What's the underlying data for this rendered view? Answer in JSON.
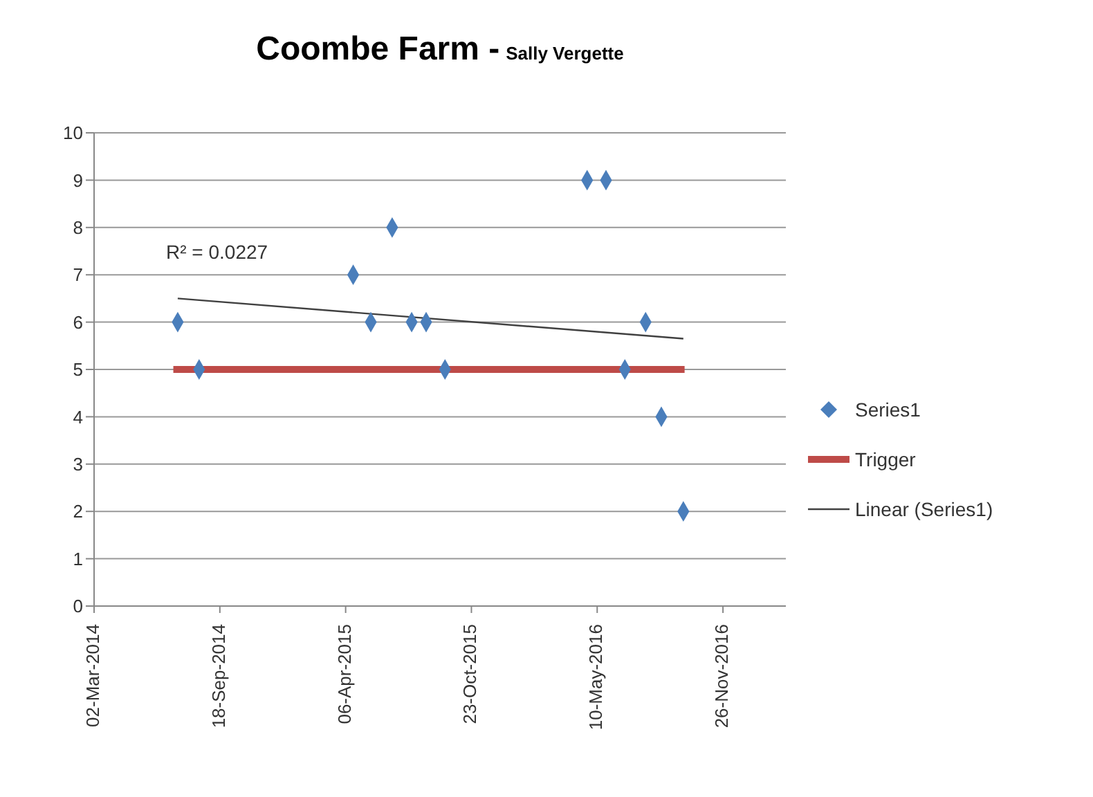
{
  "chart_data": {
    "type": "scatter",
    "title": "Coombe Farm -",
    "subtitle": "Sally Vergette",
    "annotations": [
      "R² = 0.0227"
    ],
    "xlim": [
      "2014-03-02",
      "2017-03-06"
    ],
    "xticks": [
      {
        "value": "2014-03-02",
        "label": "02-Mar-2014"
      },
      {
        "value": "2014-09-18",
        "label": "18-Sep-2014"
      },
      {
        "value": "2015-04-06",
        "label": "06-Apr-2015"
      },
      {
        "value": "2015-10-23",
        "label": "23-Oct-2015"
      },
      {
        "value": "2016-05-10",
        "label": "10-May-2016"
      },
      {
        "value": "2016-11-26",
        "label": "26-Nov-2016"
      }
    ],
    "ylim": [
      0,
      10
    ],
    "yticks": [
      0,
      1,
      2,
      3,
      4,
      5,
      6,
      7,
      8,
      9,
      10
    ],
    "grid": "y",
    "legend": "right",
    "series": [
      {
        "name": "Series1",
        "marker": "diamond",
        "color": "#4a7ebb",
        "x": [
          "2014-07-13",
          "2014-08-16",
          "2015-04-18",
          "2015-05-16",
          "2015-06-19",
          "2015-07-20",
          "2015-08-12",
          "2015-09-11",
          "2016-04-24",
          "2016-05-24",
          "2016-06-23",
          "2016-07-26",
          "2016-08-20",
          "2016-09-24"
        ],
        "values": [
          6,
          5,
          7,
          6,
          8,
          6,
          6,
          5,
          9,
          9,
          5,
          6,
          4,
          2
        ]
      },
      {
        "name": "Trigger",
        "type": "line",
        "marker": "none",
        "color": "#be4b48",
        "x": [
          "2014-07-06",
          "2016-09-26"
        ],
        "values": [
          5,
          5
        ]
      },
      {
        "name": "Linear (Series1)",
        "type": "line",
        "marker": "none",
        "color": "#404040",
        "x": [
          "2014-07-13",
          "2016-09-24"
        ],
        "values": [
          6.5,
          5.65
        ]
      }
    ]
  }
}
